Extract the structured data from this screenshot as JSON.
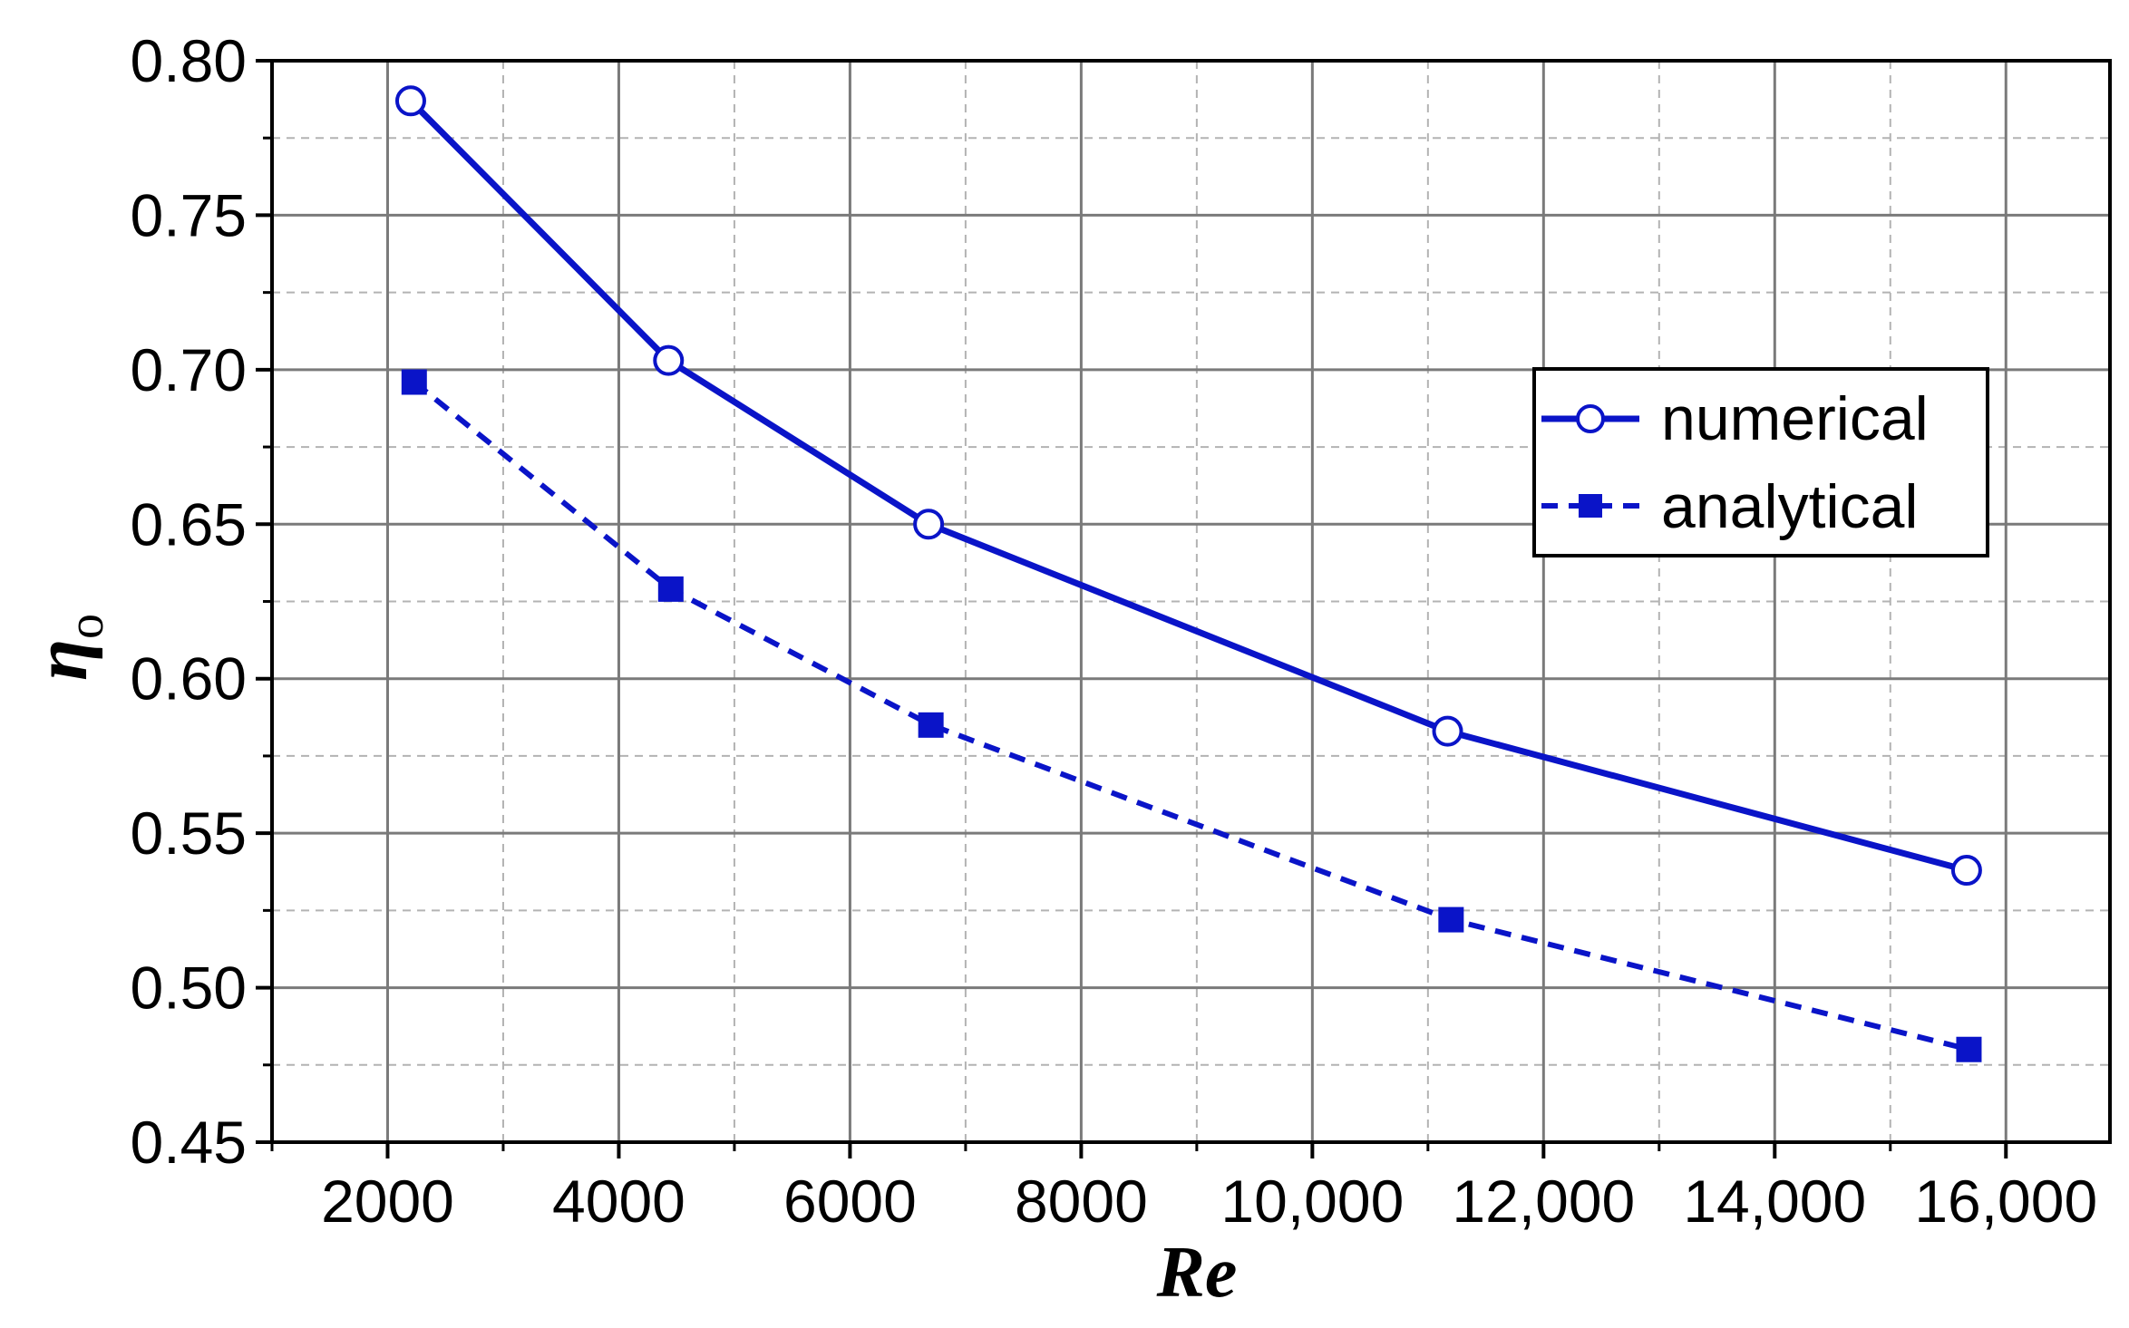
{
  "chart_data": {
    "type": "line",
    "title": "",
    "xlabel": "Re",
    "ylabel_main": "η",
    "ylabel_sub": "o",
    "xlim": [
      1000,
      16900
    ],
    "ylim": [
      0.45,
      0.8
    ],
    "xticks": [
      2000,
      4000,
      6000,
      8000,
      10000,
      12000,
      14000,
      16000
    ],
    "xtick_labels": [
      "2000",
      "4000",
      "6000",
      "8000",
      "10,000",
      "12,000",
      "14,000",
      "16,000"
    ],
    "yticks": [
      0.45,
      0.5,
      0.55,
      0.6,
      0.65,
      0.7,
      0.75,
      0.8
    ],
    "ytick_labels": [
      "0.45",
      "0.50",
      "0.55",
      "0.60",
      "0.65",
      "0.70",
      "0.75",
      "0.80"
    ],
    "grid": true,
    "legend_position": "center-right",
    "series": [
      {
        "name": "numerical",
        "color": "#0a14c8",
        "line_style": "solid",
        "marker": "open-circle",
        "x": [
          2200,
          4430,
          6680,
          11170,
          15660
        ],
        "y": [
          0.787,
          0.703,
          0.65,
          0.583,
          0.538
        ]
      },
      {
        "name": "analytical",
        "color": "#0a14c8",
        "line_style": "dashed",
        "marker": "filled-square",
        "x": [
          2230,
          4450,
          6700,
          11200,
          15680
        ],
        "y": [
          0.696,
          0.629,
          0.585,
          0.522,
          0.48
        ]
      }
    ]
  }
}
